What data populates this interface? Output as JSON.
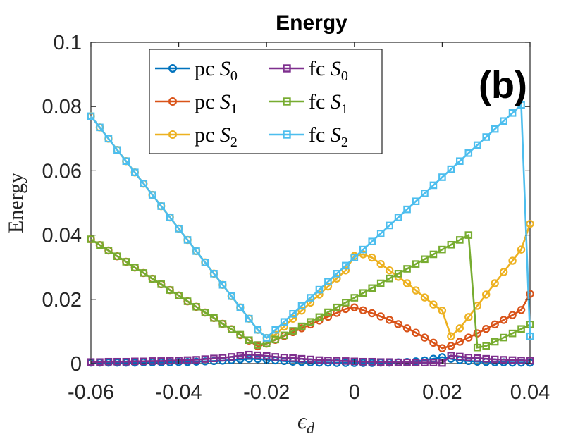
{
  "chart_data": {
    "type": "line",
    "title": "Energy",
    "panel_label": "(b)",
    "xlabel": "ϵ",
    "xlabel_sub": "d",
    "ylabel": "Energy",
    "xlim": [
      -0.06,
      0.04
    ],
    "ylim": [
      0,
      0.1
    ],
    "xticks": [
      -0.06,
      -0.04,
      -0.02,
      0,
      0.02,
      0.04
    ],
    "xtick_labels": [
      "-0.06",
      "-0.04",
      "-0.02",
      "0",
      "0.02",
      "0.04"
    ],
    "yticks": [
      0,
      0.02,
      0.04,
      0.06,
      0.08,
      0.1
    ],
    "ytick_labels": [
      "0",
      "0.02",
      "0.04",
      "0.06",
      "0.08",
      "0.1"
    ],
    "grid": false,
    "legend_position": "top-center",
    "x": [
      -0.06,
      -0.058,
      -0.056,
      -0.054,
      -0.052,
      -0.05,
      -0.048,
      -0.046,
      -0.044,
      -0.042,
      -0.04,
      -0.038,
      -0.036,
      -0.034,
      -0.032,
      -0.03,
      -0.028,
      -0.026,
      -0.024,
      -0.022,
      -0.02,
      -0.018,
      -0.016,
      -0.014,
      -0.012,
      -0.01,
      -0.008,
      -0.006,
      -0.004,
      -0.002,
      0,
      0.002,
      0.004,
      0.006,
      0.008,
      0.01,
      0.012,
      0.014,
      0.016,
      0.018,
      0.02,
      0.022,
      0.024,
      0.026,
      0.028,
      0.03,
      0.032,
      0.034,
      0.036,
      0.038,
      0.04
    ],
    "series": [
      {
        "name_prefix": "pc",
        "name_sub": "0",
        "color": "#0072BD",
        "marker": "circle",
        "values": [
          0.0003,
          0.0003,
          0.0003,
          0.0003,
          0.0003,
          0.0003,
          0.0004,
          0.0004,
          0.0004,
          0.0004,
          0.0005,
          0.0005,
          0.0006,
          0.0007,
          0.0008,
          0.0009,
          0.0011,
          0.0013,
          0.0015,
          0.0014,
          0.0012,
          0.001,
          0.0008,
          0.0006,
          0.0005,
          0.0004,
          0.0003,
          0.0003,
          0.0002,
          0.0002,
          0.0002,
          0.0002,
          0.0002,
          0.0003,
          0.0003,
          0.0004,
          0.0005,
          0.0007,
          0.001,
          0.0015,
          0.002,
          0.0015,
          0.0011,
          0.0008,
          0.0006,
          0.0005,
          0.0004,
          0.0004,
          0.0003,
          0.0003,
          0.0003
        ]
      },
      {
        "name_prefix": "pc",
        "name_sub": "1",
        "color": "#D95319",
        "marker": "circle",
        "values": [
          0.0387,
          0.0369,
          0.0352,
          0.0334,
          0.0317,
          0.0299,
          0.0282,
          0.0264,
          0.0247,
          0.0229,
          0.0212,
          0.0194,
          0.0177,
          0.0159,
          0.0142,
          0.0124,
          0.0107,
          0.0089,
          0.0072,
          0.0054,
          0.0062,
          0.0074,
          0.0086,
          0.0098,
          0.011,
          0.0122,
          0.0134,
          0.0146,
          0.0158,
          0.017,
          0.0175,
          0.0166,
          0.0157,
          0.0147,
          0.0136,
          0.0123,
          0.011,
          0.0096,
          0.0081,
          0.0065,
          0.0048,
          0.0055,
          0.0068,
          0.0081,
          0.0094,
          0.0108,
          0.0122,
          0.0136,
          0.0151,
          0.0167,
          0.0217
        ]
      },
      {
        "name_prefix": "pc",
        "name_sub": "2",
        "color": "#EDB120",
        "marker": "circle",
        "values": [
          0.077,
          0.0735,
          0.07,
          0.0665,
          0.063,
          0.0595,
          0.056,
          0.0525,
          0.049,
          0.0455,
          0.042,
          0.0385,
          0.035,
          0.0315,
          0.028,
          0.0245,
          0.021,
          0.0175,
          0.014,
          0.0105,
          0.008,
          0.009,
          0.0115,
          0.014,
          0.0165,
          0.019,
          0.0215,
          0.024,
          0.0265,
          0.029,
          0.0335,
          0.034,
          0.033,
          0.031,
          0.029,
          0.027,
          0.025,
          0.0228,
          0.0206,
          0.0184,
          0.0165,
          0.0085,
          0.011,
          0.0145,
          0.018,
          0.0215,
          0.025,
          0.0285,
          0.032,
          0.0355,
          0.0435
        ]
      },
      {
        "name_prefix": "fc",
        "name_sub": "0",
        "color": "#7E2F8E",
        "marker": "square",
        "values": [
          0.0005,
          0.0005,
          0.0006,
          0.0006,
          0.0006,
          0.0007,
          0.0007,
          0.0008,
          0.0008,
          0.0009,
          0.001,
          0.0011,
          0.0012,
          0.0014,
          0.0016,
          0.0018,
          0.0021,
          0.0025,
          0.0028,
          0.0026,
          0.0024,
          0.0021,
          0.0019,
          0.0017,
          0.0015,
          0.0013,
          0.0011,
          0.001,
          0.0009,
          0.0008,
          0.0007,
          0.0006,
          0.0006,
          0.0005,
          0.0005,
          0.0004,
          0.0004,
          0.0003,
          0.0003,
          0.0003,
          0.0002,
          0.0025,
          0.0022,
          0.0019,
          0.0017,
          0.0015,
          0.0013,
          0.0012,
          0.0011,
          0.001,
          0.0009
        ]
      },
      {
        "name_prefix": "fc",
        "name_sub": "1",
        "color": "#77AC30",
        "marker": "square",
        "values": [
          0.0387,
          0.0369,
          0.0352,
          0.0334,
          0.0317,
          0.0299,
          0.0282,
          0.0264,
          0.0247,
          0.0229,
          0.0212,
          0.0194,
          0.0177,
          0.0159,
          0.0142,
          0.0124,
          0.0107,
          0.009,
          0.0073,
          0.0058,
          0.0063,
          0.0075,
          0.0088,
          0.0102,
          0.0116,
          0.013,
          0.0145,
          0.016,
          0.0175,
          0.019,
          0.0205,
          0.022,
          0.0235,
          0.025,
          0.0265,
          0.028,
          0.0295,
          0.031,
          0.0325,
          0.034,
          0.0355,
          0.037,
          0.0385,
          0.04,
          0.005,
          0.0055,
          0.0068,
          0.0081,
          0.0094,
          0.0108,
          0.0122
        ]
      },
      {
        "name_prefix": "fc",
        "name_sub": "2",
        "color": "#4DBEEE",
        "marker": "square",
        "values": [
          0.077,
          0.0735,
          0.07,
          0.0665,
          0.063,
          0.0595,
          0.056,
          0.0525,
          0.049,
          0.0455,
          0.042,
          0.0385,
          0.035,
          0.0315,
          0.028,
          0.0245,
          0.021,
          0.0175,
          0.014,
          0.0105,
          0.008,
          0.0105,
          0.013,
          0.0155,
          0.018,
          0.0205,
          0.023,
          0.0255,
          0.028,
          0.0305,
          0.033,
          0.0355,
          0.038,
          0.0405,
          0.043,
          0.0455,
          0.048,
          0.0505,
          0.053,
          0.0555,
          0.058,
          0.0605,
          0.063,
          0.0655,
          0.068,
          0.0705,
          0.073,
          0.0755,
          0.078,
          0.0805,
          0.0085
        ]
      }
    ]
  }
}
